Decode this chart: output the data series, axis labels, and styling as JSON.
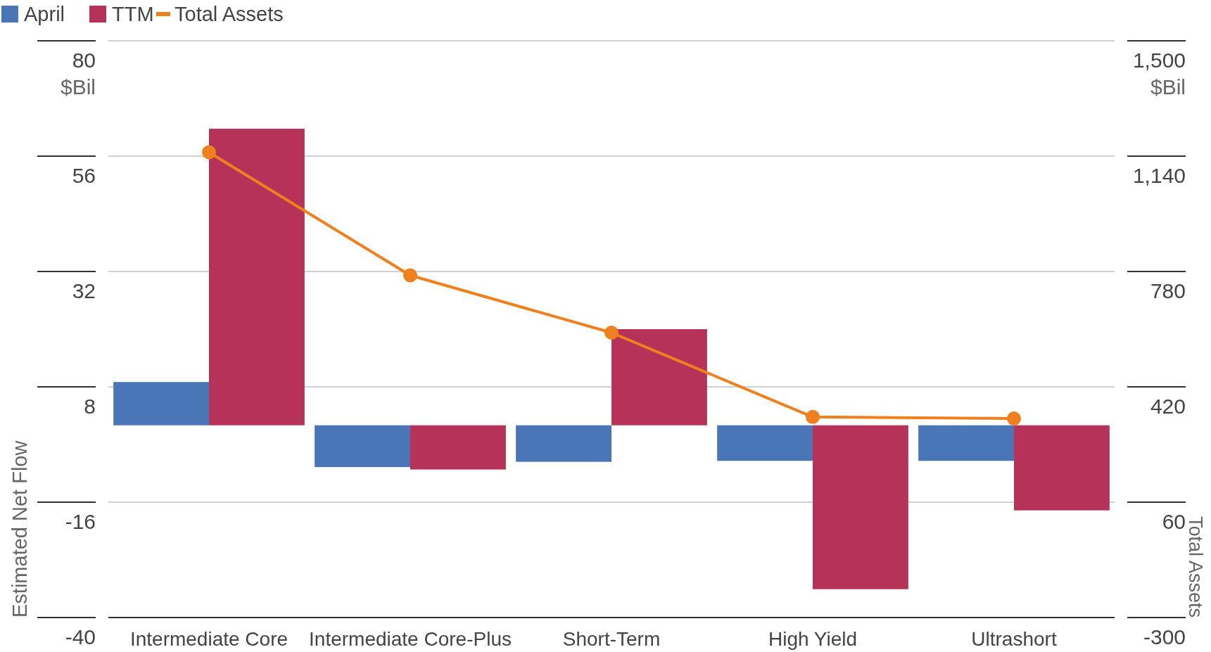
{
  "chart_data": {
    "type": "bar",
    "categories": [
      "Intermediate Core",
      "Intermediate Core-Plus",
      "Short-Term",
      "High Yield",
      "Ultrashort"
    ],
    "series": [
      {
        "name": "April",
        "color": "#4a76b8",
        "values": [
          9.0,
          -8.7,
          -7.6,
          -7.4,
          -7.4
        ]
      },
      {
        "name": "TTM",
        "color": "#b73258",
        "values": [
          61.7,
          -9.2,
          20.0,
          -34.1,
          -17.7
        ]
      },
      {
        "name": "Total Assets",
        "type": "line",
        "axis": "y2",
        "color": "#f07f1e",
        "values": [
          1152,
          768,
          589,
          326,
          321
        ]
      }
    ],
    "ylabel": "Estimated Net Flow",
    "y2label": "Total Assets",
    "ylim": [
      -40,
      80
    ],
    "yticks": [
      -40,
      -16,
      8,
      32,
      56,
      80
    ],
    "y2lim": [
      -300,
      1500
    ],
    "y2ticks": [
      {
        "value": -300,
        "label": "-300"
      },
      {
        "value": 60,
        "label": "60"
      },
      {
        "value": 420,
        "label": "420"
      },
      {
        "value": 780,
        "label": "780"
      },
      {
        "value": 1140,
        "label": "1,140"
      },
      {
        "value": 1500,
        "label": "1,500"
      }
    ],
    "annotations": [
      "$Bil",
      "$Bil"
    ],
    "grid": "y",
    "legend": "top left",
    "marker": "circle"
  }
}
